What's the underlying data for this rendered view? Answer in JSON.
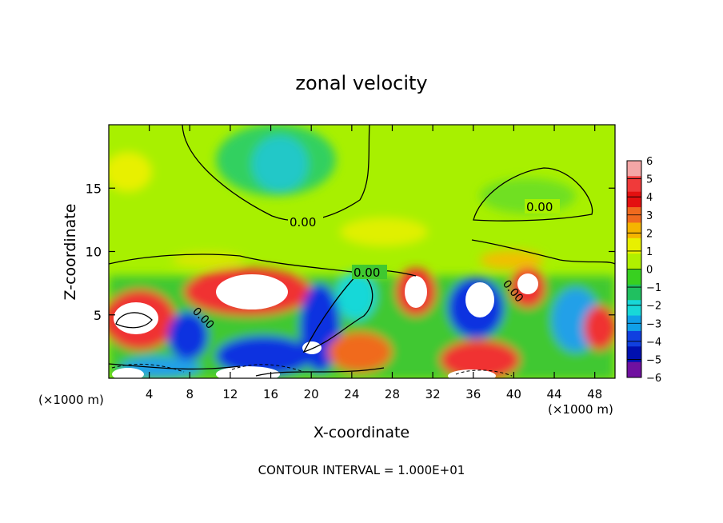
{
  "chart_data": {
    "type": "heatmap",
    "title": "zonal velocity",
    "xlabel": "X-coordinate",
    "ylabel": "Z-coordinate",
    "x_unit_left": "(×1000 m)",
    "x_unit_right": "(×1000 m)",
    "x_ticks": [
      "4",
      "8",
      "12",
      "16",
      "20",
      "24",
      "28",
      "32",
      "36",
      "40",
      "44",
      "48"
    ],
    "y_ticks": [
      "5",
      "10",
      "15"
    ],
    "xlim": [
      0,
      50
    ],
    "ylim": [
      0,
      20
    ],
    "footer": "CONTOUR INTERVAL = 1.000E+01",
    "contour_labels": [
      "0.00",
      "0.00",
      "0.00",
      "0.00",
      "0.00"
    ],
    "colorbar": {
      "ticks": [
        "6",
        "5",
        "4",
        "3",
        "2",
        "1",
        "0",
        "−1",
        "−2",
        "−3",
        "−4",
        "−5",
        "−6"
      ],
      "colors": [
        "#f4a6a6",
        "#f03a3a",
        "#e41010",
        "#f06a1e",
        "#f5b400",
        "#e8f000",
        "#b0f000",
        "#38d020",
        "#20c060",
        "#18d8d8",
        "#10a0e8",
        "#1040e0",
        "#0010b0",
        "#7010a0"
      ]
    }
  }
}
